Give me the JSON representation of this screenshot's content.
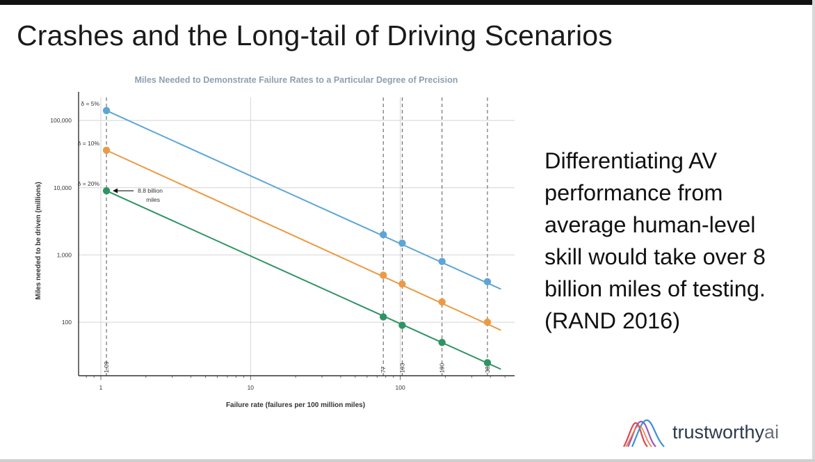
{
  "slide": {
    "title": "Crashes and the Long-tail of Driving Scenarios",
    "side_text": "Differentiating AV performance from average human-level skill would take over 8 billion miles of testing. (RAND 2016)"
  },
  "logo": {
    "text_main": "trustworthy",
    "text_accent": "ai",
    "icon": "wave-logo-icon"
  },
  "chart_data": {
    "type": "line",
    "title": "Miles Needed to Demonstrate Failure Rates to a Particular Degree of Precision",
    "xlabel": "Failure rate (failures per 100 million miles)",
    "ylabel": "Miles needed to be driven (millions)",
    "xscale": "log",
    "yscale": "log",
    "xlim": [
      0.71,
      580
    ],
    "ylim": [
      16,
      220000
    ],
    "x_ticks": [
      1,
      10,
      100
    ],
    "x_tick_labels": [
      "1",
      "10",
      "100"
    ],
    "y_ticks": [
      100,
      1000,
      10000,
      100000
    ],
    "y_tick_labels": [
      "100",
      "1,000",
      "10,000",
      "100,000"
    ],
    "grid": true,
    "reference_lines": [
      {
        "x": 1.09,
        "label": "1.09"
      },
      {
        "x": 77,
        "label": "77"
      },
      {
        "x": 103,
        "label": "103"
      },
      {
        "x": 190,
        "label": "190"
      },
      {
        "x": 382,
        "label": "382"
      }
    ],
    "series": [
      {
        "name": "δ = 5%",
        "color": "#5ca6d6",
        "line": [
          [
            1.09,
            140000
          ],
          [
            470,
            310
          ]
        ],
        "points": [
          [
            1.09,
            140000
          ],
          [
            77,
            2000
          ],
          [
            103,
            1500
          ],
          [
            190,
            800
          ],
          [
            382,
            400
          ]
        ]
      },
      {
        "name": "δ = 10%",
        "color": "#ec9a45",
        "line": [
          [
            1.09,
            36000
          ],
          [
            470,
            76
          ]
        ],
        "points": [
          [
            1.09,
            36000
          ],
          [
            77,
            500
          ],
          [
            103,
            370
          ],
          [
            190,
            200
          ],
          [
            382,
            100
          ]
        ]
      },
      {
        "name": "δ = 20%",
        "color": "#2f9463",
        "line": [
          [
            1.09,
            9000
          ],
          [
            470,
            20
          ]
        ],
        "points": [
          [
            1.09,
            9000
          ],
          [
            77,
            120
          ],
          [
            103,
            90
          ],
          [
            190,
            50
          ],
          [
            382,
            25
          ]
        ]
      }
    ],
    "annotation": {
      "text_line1": "8.8 billion",
      "text_line2": "miles",
      "x": 1.09,
      "y": 9000
    }
  }
}
